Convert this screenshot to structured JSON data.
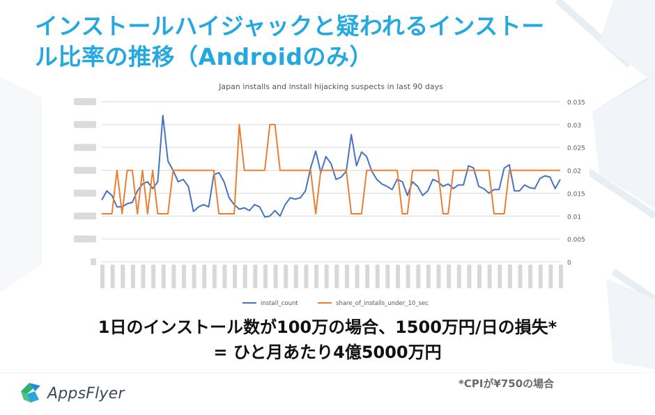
{
  "slide": {
    "title_line1": "インストールハイジャックと疑われるインストー",
    "title_line2": "ル比率の推移（Androidのみ）",
    "headline_line1": "1日のインストール数が100万の場合、1500万円/日の損失*",
    "headline_line2": "= ひと月あたり4億5000万円",
    "footnote": "*CPIが¥750の場合",
    "logo_text": "AppsFlyer",
    "title_color": "#23a8e0"
  },
  "chart_data": {
    "type": "line",
    "title": "Japan installs and install hijacking suspects in last 90 days",
    "y2_ticks": [
      "0.035",
      "0.03",
      "0.025",
      "0.02",
      "0.015",
      "0.01",
      "0.005",
      "0"
    ],
    "y2lim": [
      0,
      0.035
    ],
    "left_axis_labels_blurred": true,
    "x_labels_blurred": true,
    "grid": true,
    "legend_position": "bottom",
    "series": [
      {
        "name": "install_count",
        "axis": "left (values hidden)",
        "color": "#4472c4",
        "values": [
          0.0135,
          0.0155,
          0.0145,
          0.012,
          0.012,
          0.0127,
          0.013,
          0.0155,
          0.017,
          0.0175,
          0.016,
          0.0175,
          0.032,
          0.022,
          0.02,
          0.0175,
          0.018,
          0.0165,
          0.011,
          0.012,
          0.0125,
          0.012,
          0.019,
          0.0195,
          0.0175,
          0.014,
          0.0125,
          0.0115,
          0.0118,
          0.0112,
          0.0125,
          0.012,
          0.0098,
          0.01,
          0.0112,
          0.01,
          0.0125,
          0.014,
          0.0137,
          0.014,
          0.0155,
          0.0205,
          0.0242,
          0.0195,
          0.023,
          0.0215,
          0.018,
          0.0185,
          0.0198,
          0.0278,
          0.021,
          0.024,
          0.023,
          0.0198,
          0.018,
          0.017,
          0.0165,
          0.0158,
          0.018,
          0.0175,
          0.0145,
          0.0175,
          0.0165,
          0.0145,
          0.0155,
          0.018,
          0.0175,
          0.0165,
          0.017,
          0.016,
          0.0168,
          0.0168,
          0.021,
          0.0205,
          0.0165,
          0.016,
          0.015,
          0.0158,
          0.0158,
          0.0205,
          0.0212,
          0.0155,
          0.0155,
          0.0168,
          0.0162,
          0.016,
          0.0182,
          0.0188,
          0.0185,
          0.016,
          0.018
        ]
      },
      {
        "name": "share_of_installs_under_10_sec",
        "axis": "right",
        "color": "#ed7d31",
        "values": [
          0.0105,
          0.0105,
          0.0105,
          0.02,
          0.0105,
          0.02,
          0.02,
          0.0105,
          0.02,
          0.0105,
          0.02,
          0.0105,
          0.0105,
          0.0105,
          0.02,
          0.02,
          0.02,
          0.02,
          0.02,
          0.02,
          0.02,
          0.02,
          0.02,
          0.0105,
          0.0105,
          0.0105,
          0.0105,
          0.03,
          0.02,
          0.02,
          0.02,
          0.02,
          0.02,
          0.03,
          0.03,
          0.02,
          0.02,
          0.02,
          0.02,
          0.02,
          0.02,
          0.02,
          0.0105,
          0.02,
          0.02,
          0.02,
          0.02,
          0.02,
          0.02,
          0.0105,
          0.0105,
          0.0105,
          0.02,
          0.02,
          0.02,
          0.02,
          0.02,
          0.02,
          0.02,
          0.0105,
          0.0105,
          0.02,
          0.02,
          0.02,
          0.02,
          0.02,
          0.02,
          0.0105,
          0.0105,
          0.02,
          0.02,
          0.02,
          0.02,
          0.02,
          0.02,
          0.02,
          0.02,
          0.0105,
          0.0105,
          0.0105,
          0.02,
          0.02,
          0.02,
          0.02,
          0.02,
          0.02,
          0.02,
          0.02,
          0.02,
          0.02,
          0.02
        ]
      }
    ]
  }
}
